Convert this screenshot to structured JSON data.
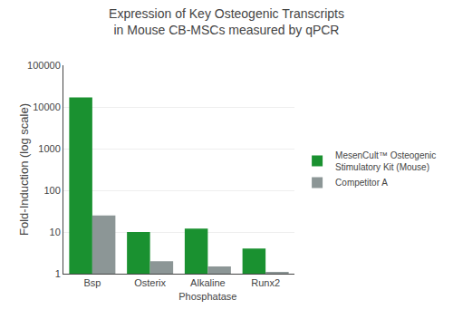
{
  "chart_data": {
    "type": "bar",
    "title": "Expression of Key Osteogenic Transcripts\nin Mouse CB-MSCs measured by qPCR",
    "categories": [
      "Bsp",
      "Osterix",
      "Alkaline\nPhosphatase",
      "Runx2"
    ],
    "series": [
      {
        "name": "MesenCult™ Osteogenic\nStimulatory Kit (Mouse)",
        "color": "#1a9130",
        "values": [
          17000,
          10,
          12,
          4
        ]
      },
      {
        "name": "Competitor A",
        "color": "#8c9696",
        "values": [
          25,
          2,
          1.5,
          1.1
        ]
      }
    ],
    "ylabel": "Fold-Induction (log scale)",
    "ylim": [
      1,
      100000
    ],
    "yticks": [
      1,
      10,
      100,
      1000,
      10000,
      100000
    ],
    "log": "y",
    "grid": true,
    "legend": "right"
  }
}
